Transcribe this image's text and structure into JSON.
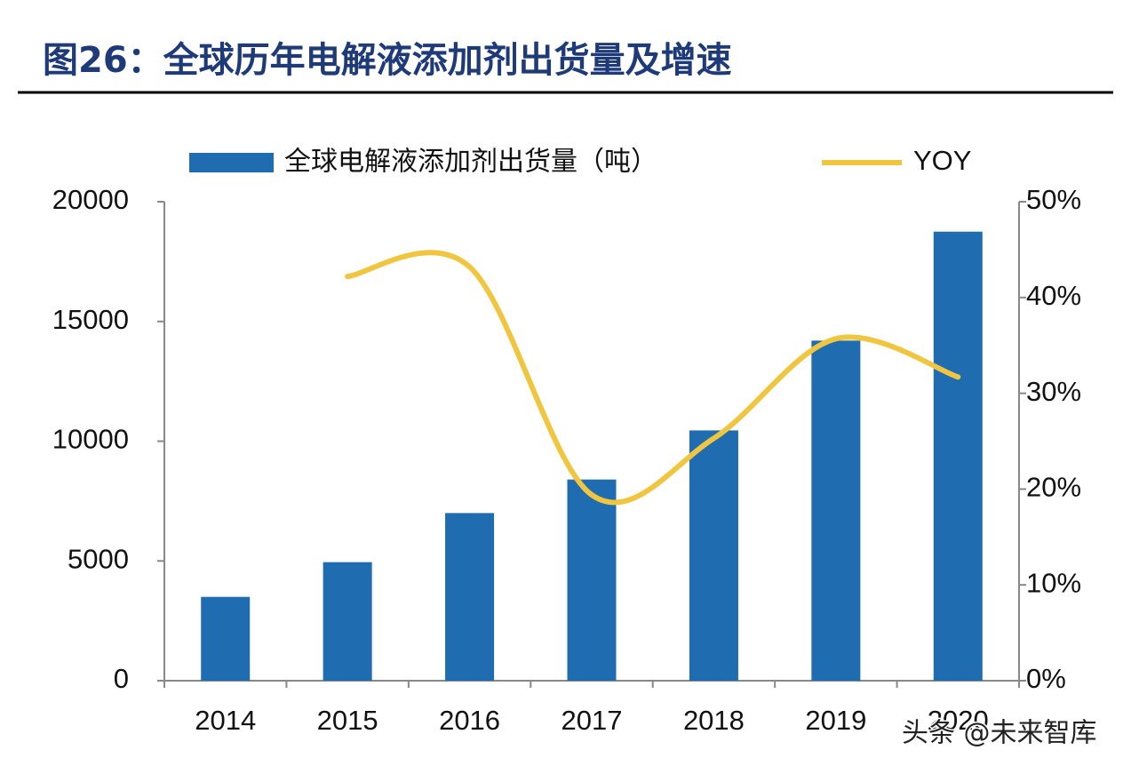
{
  "chart_data": {
    "type": "bar-line",
    "title": "图26：全球历年电解液添加剂出货量及增速",
    "categories": [
      "2014",
      "2015",
      "2016",
      "2017",
      "2018",
      "2019",
      "2020"
    ],
    "series": [
      {
        "name": "全球电解液添加剂出货量（吨）",
        "type": "bar",
        "color": "#1f6db0",
        "values": [
          3500,
          4950,
          7000,
          8400,
          10450,
          14200,
          18750
        ]
      },
      {
        "name": "YOY",
        "type": "line",
        "axis": "y2",
        "color": "#f0c540",
        "values": [
          null,
          42.2,
          43.2,
          19.4,
          25.3,
          35.7,
          31.7
        ]
      }
    ],
    "ylim": [
      0,
      20000
    ],
    "yticks": [
      0,
      5000,
      10000,
      15000,
      20000
    ],
    "y2lim": [
      0,
      50
    ],
    "y2ticks": [
      {
        "value": 0,
        "label": "0%"
      },
      {
        "value": 10,
        "label": "10%"
      },
      {
        "value": 20,
        "label": "20%"
      },
      {
        "value": 30,
        "label": "30%"
      },
      {
        "value": 40,
        "label": "40%"
      },
      {
        "value": 50,
        "label": "50%"
      }
    ],
    "grid": false,
    "watermark": "头条 @未来智库"
  }
}
